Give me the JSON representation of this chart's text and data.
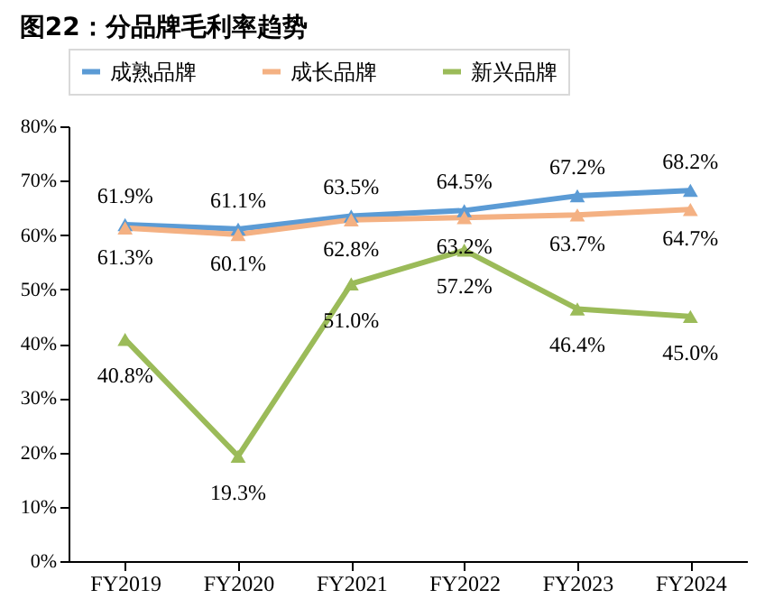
{
  "chart_data": {
    "type": "line",
    "title": "图22：分品牌毛利率趋势",
    "categories": [
      "FY2019",
      "FY2020",
      "FY2021",
      "FY2022",
      "FY2023",
      "FY2024"
    ],
    "series": [
      {
        "name": "成熟品牌",
        "color": "#5b9bd5",
        "values": [
          61.9,
          61.1,
          63.5,
          64.5,
          67.2,
          68.2
        ],
        "value_labels": [
          "61.9%",
          "61.1%",
          "63.5%",
          "64.5%",
          "67.2%",
          "68.2%"
        ]
      },
      {
        "name": "成长品牌",
        "color": "#f4b183",
        "values": [
          61.3,
          60.1,
          62.8,
          63.2,
          63.7,
          64.7
        ],
        "value_labels": [
          "61.3%",
          "60.1%",
          "62.8%",
          "63.2%",
          "63.7%",
          "64.7%"
        ]
      },
      {
        "name": "新兴品牌",
        "color": "#9bbb59",
        "values": [
          40.8,
          19.3,
          51.0,
          57.2,
          46.4,
          45.0
        ],
        "value_labels": [
          "40.8%",
          "19.3%",
          "51.0%",
          "57.2%",
          "46.4%",
          "45.0%"
        ]
      }
    ],
    "ylim": [
      0,
      80
    ],
    "yticks": [
      {
        "value": 0,
        "label": "0%"
      },
      {
        "value": 10,
        "label": "10%"
      },
      {
        "value": 20,
        "label": "20%"
      },
      {
        "value": 30,
        "label": "30%"
      },
      {
        "value": 40,
        "label": "40%"
      },
      {
        "value": 50,
        "label": "50%"
      },
      {
        "value": 60,
        "label": "60%"
      },
      {
        "value": 70,
        "label": "70%"
      },
      {
        "value": 80,
        "label": "80%"
      }
    ],
    "grid": false,
    "legend": "top",
    "marker": "triangle",
    "line_style": "solid"
  }
}
